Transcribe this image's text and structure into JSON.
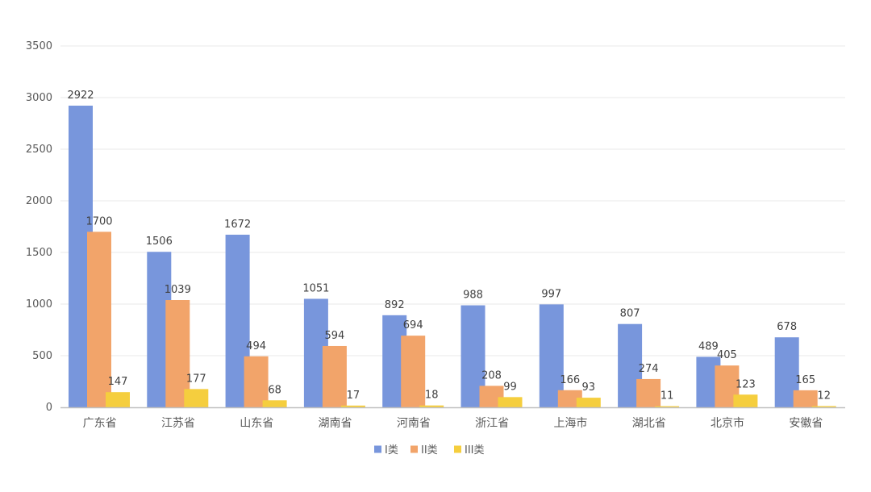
{
  "chart_data": {
    "type": "bar",
    "title": "",
    "xlabel": "",
    "ylabel": "",
    "ylim": [
      0,
      3500
    ],
    "yticks": [
      0,
      500,
      1000,
      1500,
      2000,
      2500,
      3000,
      3500
    ],
    "grid": true,
    "legend_position": "bottom",
    "categories": [
      "广东省",
      "江苏省",
      "山东省",
      "湖南省",
      "河南省",
      "浙江省",
      "上海市",
      "湖北省",
      "北京市",
      "安徽省"
    ],
    "series": [
      {
        "name": "I类",
        "color": "#7896DC",
        "values": [
          2922,
          1506,
          1672,
          1051,
          892,
          988,
          997,
          807,
          489,
          678
        ]
      },
      {
        "name": "II类",
        "color": "#F2A46A",
        "values": [
          1700,
          1039,
          494,
          594,
          694,
          208,
          166,
          274,
          405,
          165
        ]
      },
      {
        "name": "III类",
        "color": "#F5CE3E",
        "values": [
          147,
          177,
          68,
          17,
          18,
          99,
          93,
          11,
          123,
          12
        ]
      }
    ]
  }
}
